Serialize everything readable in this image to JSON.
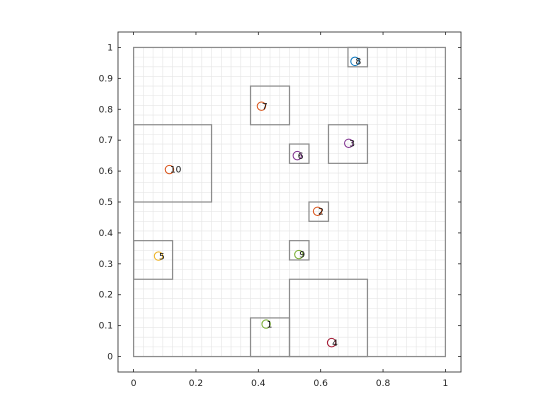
{
  "chart_data": {
    "type": "scatter",
    "title": "",
    "xlabel": "",
    "ylabel": "",
    "xlim": [
      -0.05,
      1.05
    ],
    "ylim": [
      -0.05,
      1.05
    ],
    "x_ticks": [
      0,
      0.2,
      0.4,
      0.6,
      0.8,
      1
    ],
    "x_tick_labels": [
      "0",
      "0.2",
      "0.4",
      "0.6",
      "0.8",
      "1"
    ],
    "y_ticks": [
      0,
      0.1,
      0.2,
      0.3,
      0.4,
      0.5,
      0.6,
      0.7,
      0.8,
      0.9,
      1
    ],
    "y_tick_labels": [
      "0",
      "0.1",
      "0.2",
      "0.3",
      "0.4",
      "0.5",
      "0.6",
      "0.7",
      "0.8",
      "0.9",
      "1"
    ],
    "grid": true,
    "grid_step": 0.03125,
    "points": [
      {
        "label": "1",
        "x": 0.425,
        "y": 0.105,
        "color": "#77ac30"
      },
      {
        "label": "2",
        "x": 0.59,
        "y": 0.47,
        "color": "#d95319"
      },
      {
        "label": "3",
        "x": 0.69,
        "y": 0.69,
        "color": "#7e2f8e"
      },
      {
        "label": "4",
        "x": 0.635,
        "y": 0.045,
        "color": "#a2142f"
      },
      {
        "label": "5",
        "x": 0.08,
        "y": 0.325,
        "color": "#edb120"
      },
      {
        "label": "6",
        "x": 0.525,
        "y": 0.65,
        "color": "#7e2f8e"
      },
      {
        "label": "7",
        "x": 0.41,
        "y": 0.81,
        "color": "#d95319"
      },
      {
        "label": "8",
        "x": 0.71,
        "y": 0.955,
        "color": "#0072bd"
      },
      {
        "label": "9",
        "x": 0.53,
        "y": 0.33,
        "color": "#77ac30"
      },
      {
        "label": "10",
        "x": 0.115,
        "y": 0.605,
        "color": "#d95319"
      }
    ],
    "cells": [
      {
        "x0": 0,
        "y0": 0,
        "x1": 1,
        "y1": 1
      },
      {
        "x0": 0,
        "y0": 0.5,
        "x1": 0.25,
        "y1": 0.75
      },
      {
        "x0": 0,
        "y0": 0.25,
        "x1": 0.125,
        "y1": 0.375
      },
      {
        "x0": 0.375,
        "y0": 0.75,
        "x1": 0.5,
        "y1": 0.875
      },
      {
        "x0": 0.5,
        "y0": 0.625,
        "x1": 0.5625,
        "y1": 0.6875
      },
      {
        "x0": 0.5625,
        "y0": 0.4375,
        "x1": 0.625,
        "y1": 0.5
      },
      {
        "x0": 0.625,
        "y0": 0.625,
        "x1": 0.75,
        "y1": 0.75
      },
      {
        "x0": 0.6875,
        "y0": 0.9375,
        "x1": 0.75,
        "y1": 1
      },
      {
        "x0": 0.5,
        "y0": 0.3125,
        "x1": 0.5625,
        "y1": 0.375
      },
      {
        "x0": 0.375,
        "y0": 0,
        "x1": 0.5,
        "y1": 0.125
      },
      {
        "x0": 0.5,
        "y0": 0,
        "x1": 0.75,
        "y1": 0.25
      }
    ]
  }
}
